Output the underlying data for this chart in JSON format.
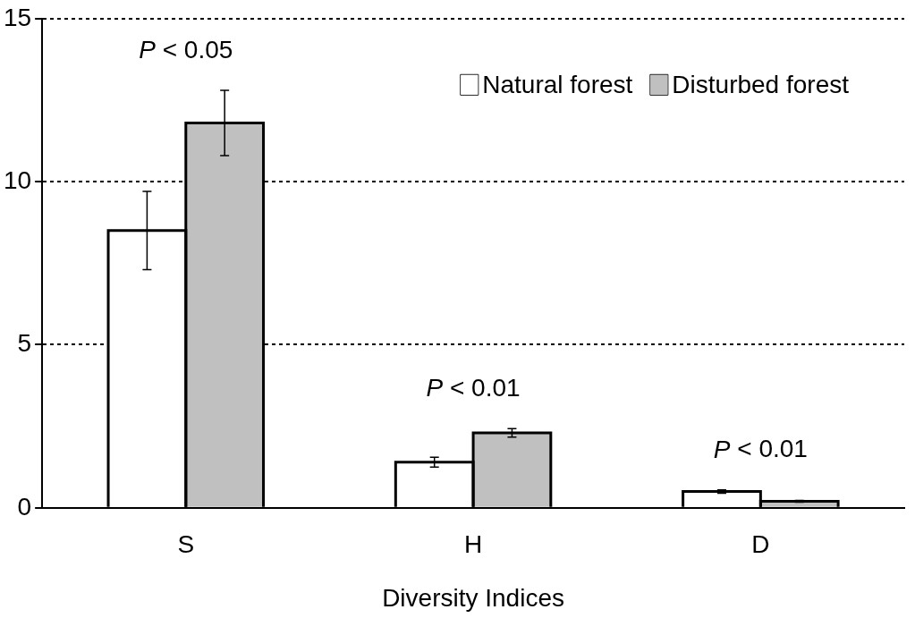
{
  "chart_data": {
    "type": "bar",
    "xlabel": "Diversity Indices",
    "categories": [
      "S",
      "H",
      "D"
    ],
    "series": [
      {
        "name": "Natural forest",
        "color": "#ffffff",
        "values": [
          8.5,
          1.4,
          0.5
        ],
        "errors": [
          1.2,
          0.15,
          0.05
        ]
      },
      {
        "name": "Disturbed forest",
        "color": "#c0c0c0",
        "values": [
          11.8,
          2.3,
          0.2
        ],
        "errors": [
          1.0,
          0.13,
          0.03
        ]
      }
    ],
    "ylim": [
      0,
      15
    ],
    "yticks": [
      0,
      5,
      10,
      15
    ],
    "grid": "y",
    "line_style": "dotted",
    "legend": "top right",
    "annotations": [
      "P < 0.05",
      "P < 0.01",
      "P < 0.01"
    ]
  }
}
